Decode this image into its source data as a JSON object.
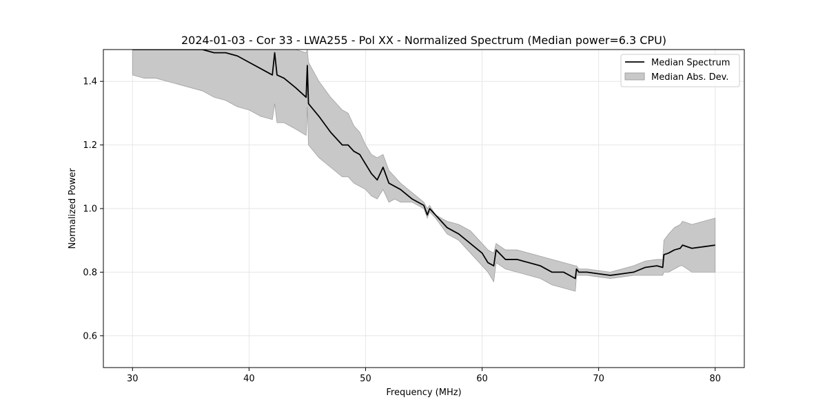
{
  "chart_data": {
    "type": "line",
    "title": "2024-01-03 - Cor 33 - LWA255 - Pol XX - Normalized Spectrum (Median power=6.3 CPU)",
    "xlabel": "Frequency (MHz)",
    "ylabel": "Normalized Power",
    "xlim": [
      27.5,
      82.5
    ],
    "ylim": [
      0.5,
      1.5
    ],
    "xticks": [
      30,
      40,
      50,
      60,
      70,
      80
    ],
    "yticks": [
      0.6,
      0.8,
      1.0,
      1.2,
      1.4
    ],
    "xtick_labels": [
      "30",
      "40",
      "50",
      "60",
      "70",
      "80"
    ],
    "ytick_labels": [
      "0.6",
      "0.8",
      "1.0",
      "1.2",
      "1.4"
    ],
    "grid": true,
    "legend": {
      "position": "top-right",
      "entries": [
        "Median Spectrum",
        "Median Abs. Dev."
      ]
    },
    "colors": {
      "line": "#000000",
      "band_fill": "#c8c8c8",
      "band_edge": "#a0a0a0",
      "grid": "#e6e6e6"
    },
    "series": [
      {
        "name": "Median Spectrum",
        "x": [
          30,
          31,
          32,
          33,
          34,
          35,
          36,
          37,
          38,
          39,
          40,
          41,
          42,
          42.2,
          42.4,
          43,
          44,
          44.9,
          45.0,
          45.1,
          46,
          47,
          48,
          48.5,
          49,
          49.5,
          50,
          50.5,
          51,
          51.5,
          52,
          52.5,
          53,
          54,
          55,
          55.3,
          55.5,
          56,
          57,
          58,
          59,
          60,
          60.5,
          61,
          61.2,
          62,
          63,
          64,
          65,
          66,
          67,
          68,
          68.1,
          68.3,
          69,
          70,
          71,
          72,
          73,
          74,
          75,
          75.5,
          75.6,
          76,
          76.5,
          77,
          77.2,
          78,
          79,
          80
        ],
        "values": [
          1.5,
          1.5,
          1.5,
          1.5,
          1.5,
          1.5,
          1.5,
          1.49,
          1.49,
          1.48,
          1.46,
          1.44,
          1.42,
          1.49,
          1.42,
          1.41,
          1.38,
          1.35,
          1.45,
          1.33,
          1.29,
          1.24,
          1.2,
          1.2,
          1.18,
          1.17,
          1.14,
          1.11,
          1.09,
          1.13,
          1.08,
          1.07,
          1.06,
          1.03,
          1.01,
          0.98,
          1.0,
          0.98,
          0.94,
          0.92,
          0.89,
          0.86,
          0.83,
          0.82,
          0.87,
          0.84,
          0.84,
          0.83,
          0.82,
          0.8,
          0.8,
          0.78,
          0.81,
          0.8,
          0.8,
          0.795,
          0.79,
          0.795,
          0.8,
          0.815,
          0.82,
          0.815,
          0.855,
          0.86,
          0.87,
          0.875,
          0.885,
          0.875,
          0.88,
          0.885
        ]
      },
      {
        "name": "Median Abs. Dev.",
        "kind": "band",
        "x": [
          30,
          31,
          32,
          33,
          34,
          35,
          36,
          37,
          38,
          39,
          40,
          41,
          42,
          42.2,
          42.4,
          43,
          44,
          44.9,
          45.0,
          45.1,
          46,
          47,
          48,
          48.5,
          49,
          49.5,
          50,
          50.5,
          51,
          51.5,
          52,
          52.5,
          53,
          54,
          55,
          55.3,
          55.5,
          56,
          57,
          58,
          59,
          60,
          60.5,
          61,
          61.2,
          62,
          63,
          64,
          65,
          66,
          67,
          68,
          68.1,
          68.3,
          69,
          70,
          71,
          72,
          73,
          74,
          75,
          75.5,
          75.6,
          76,
          76.5,
          77,
          77.2,
          78,
          79,
          80
        ],
        "lower": [
          1.42,
          1.41,
          1.41,
          1.4,
          1.39,
          1.38,
          1.37,
          1.35,
          1.34,
          1.32,
          1.31,
          1.29,
          1.28,
          1.33,
          1.27,
          1.27,
          1.25,
          1.23,
          1.32,
          1.2,
          1.16,
          1.13,
          1.1,
          1.1,
          1.08,
          1.07,
          1.06,
          1.04,
          1.03,
          1.06,
          1.02,
          1.03,
          1.02,
          1.02,
          1.0,
          0.97,
          0.99,
          0.97,
          0.92,
          0.9,
          0.86,
          0.82,
          0.8,
          0.77,
          0.83,
          0.81,
          0.8,
          0.79,
          0.78,
          0.76,
          0.75,
          0.74,
          0.79,
          0.79,
          0.79,
          0.785,
          0.78,
          0.785,
          0.79,
          0.79,
          0.79,
          0.79,
          0.8,
          0.8,
          0.81,
          0.82,
          0.82,
          0.8,
          0.8,
          0.8
        ],
        "upper": [
          1.5,
          1.5,
          1.5,
          1.5,
          1.5,
          1.5,
          1.5,
          1.5,
          1.5,
          1.5,
          1.5,
          1.5,
          1.5,
          1.5,
          1.5,
          1.5,
          1.5,
          1.49,
          1.5,
          1.46,
          1.4,
          1.35,
          1.31,
          1.3,
          1.26,
          1.24,
          1.2,
          1.17,
          1.16,
          1.17,
          1.12,
          1.1,
          1.08,
          1.05,
          1.02,
          1.0,
          1.01,
          0.98,
          0.96,
          0.95,
          0.93,
          0.89,
          0.87,
          0.86,
          0.89,
          0.87,
          0.87,
          0.86,
          0.85,
          0.84,
          0.83,
          0.82,
          0.82,
          0.81,
          0.81,
          0.805,
          0.8,
          0.81,
          0.82,
          0.835,
          0.84,
          0.84,
          0.9,
          0.92,
          0.94,
          0.95,
          0.96,
          0.95,
          0.96,
          0.97
        ]
      }
    ]
  }
}
